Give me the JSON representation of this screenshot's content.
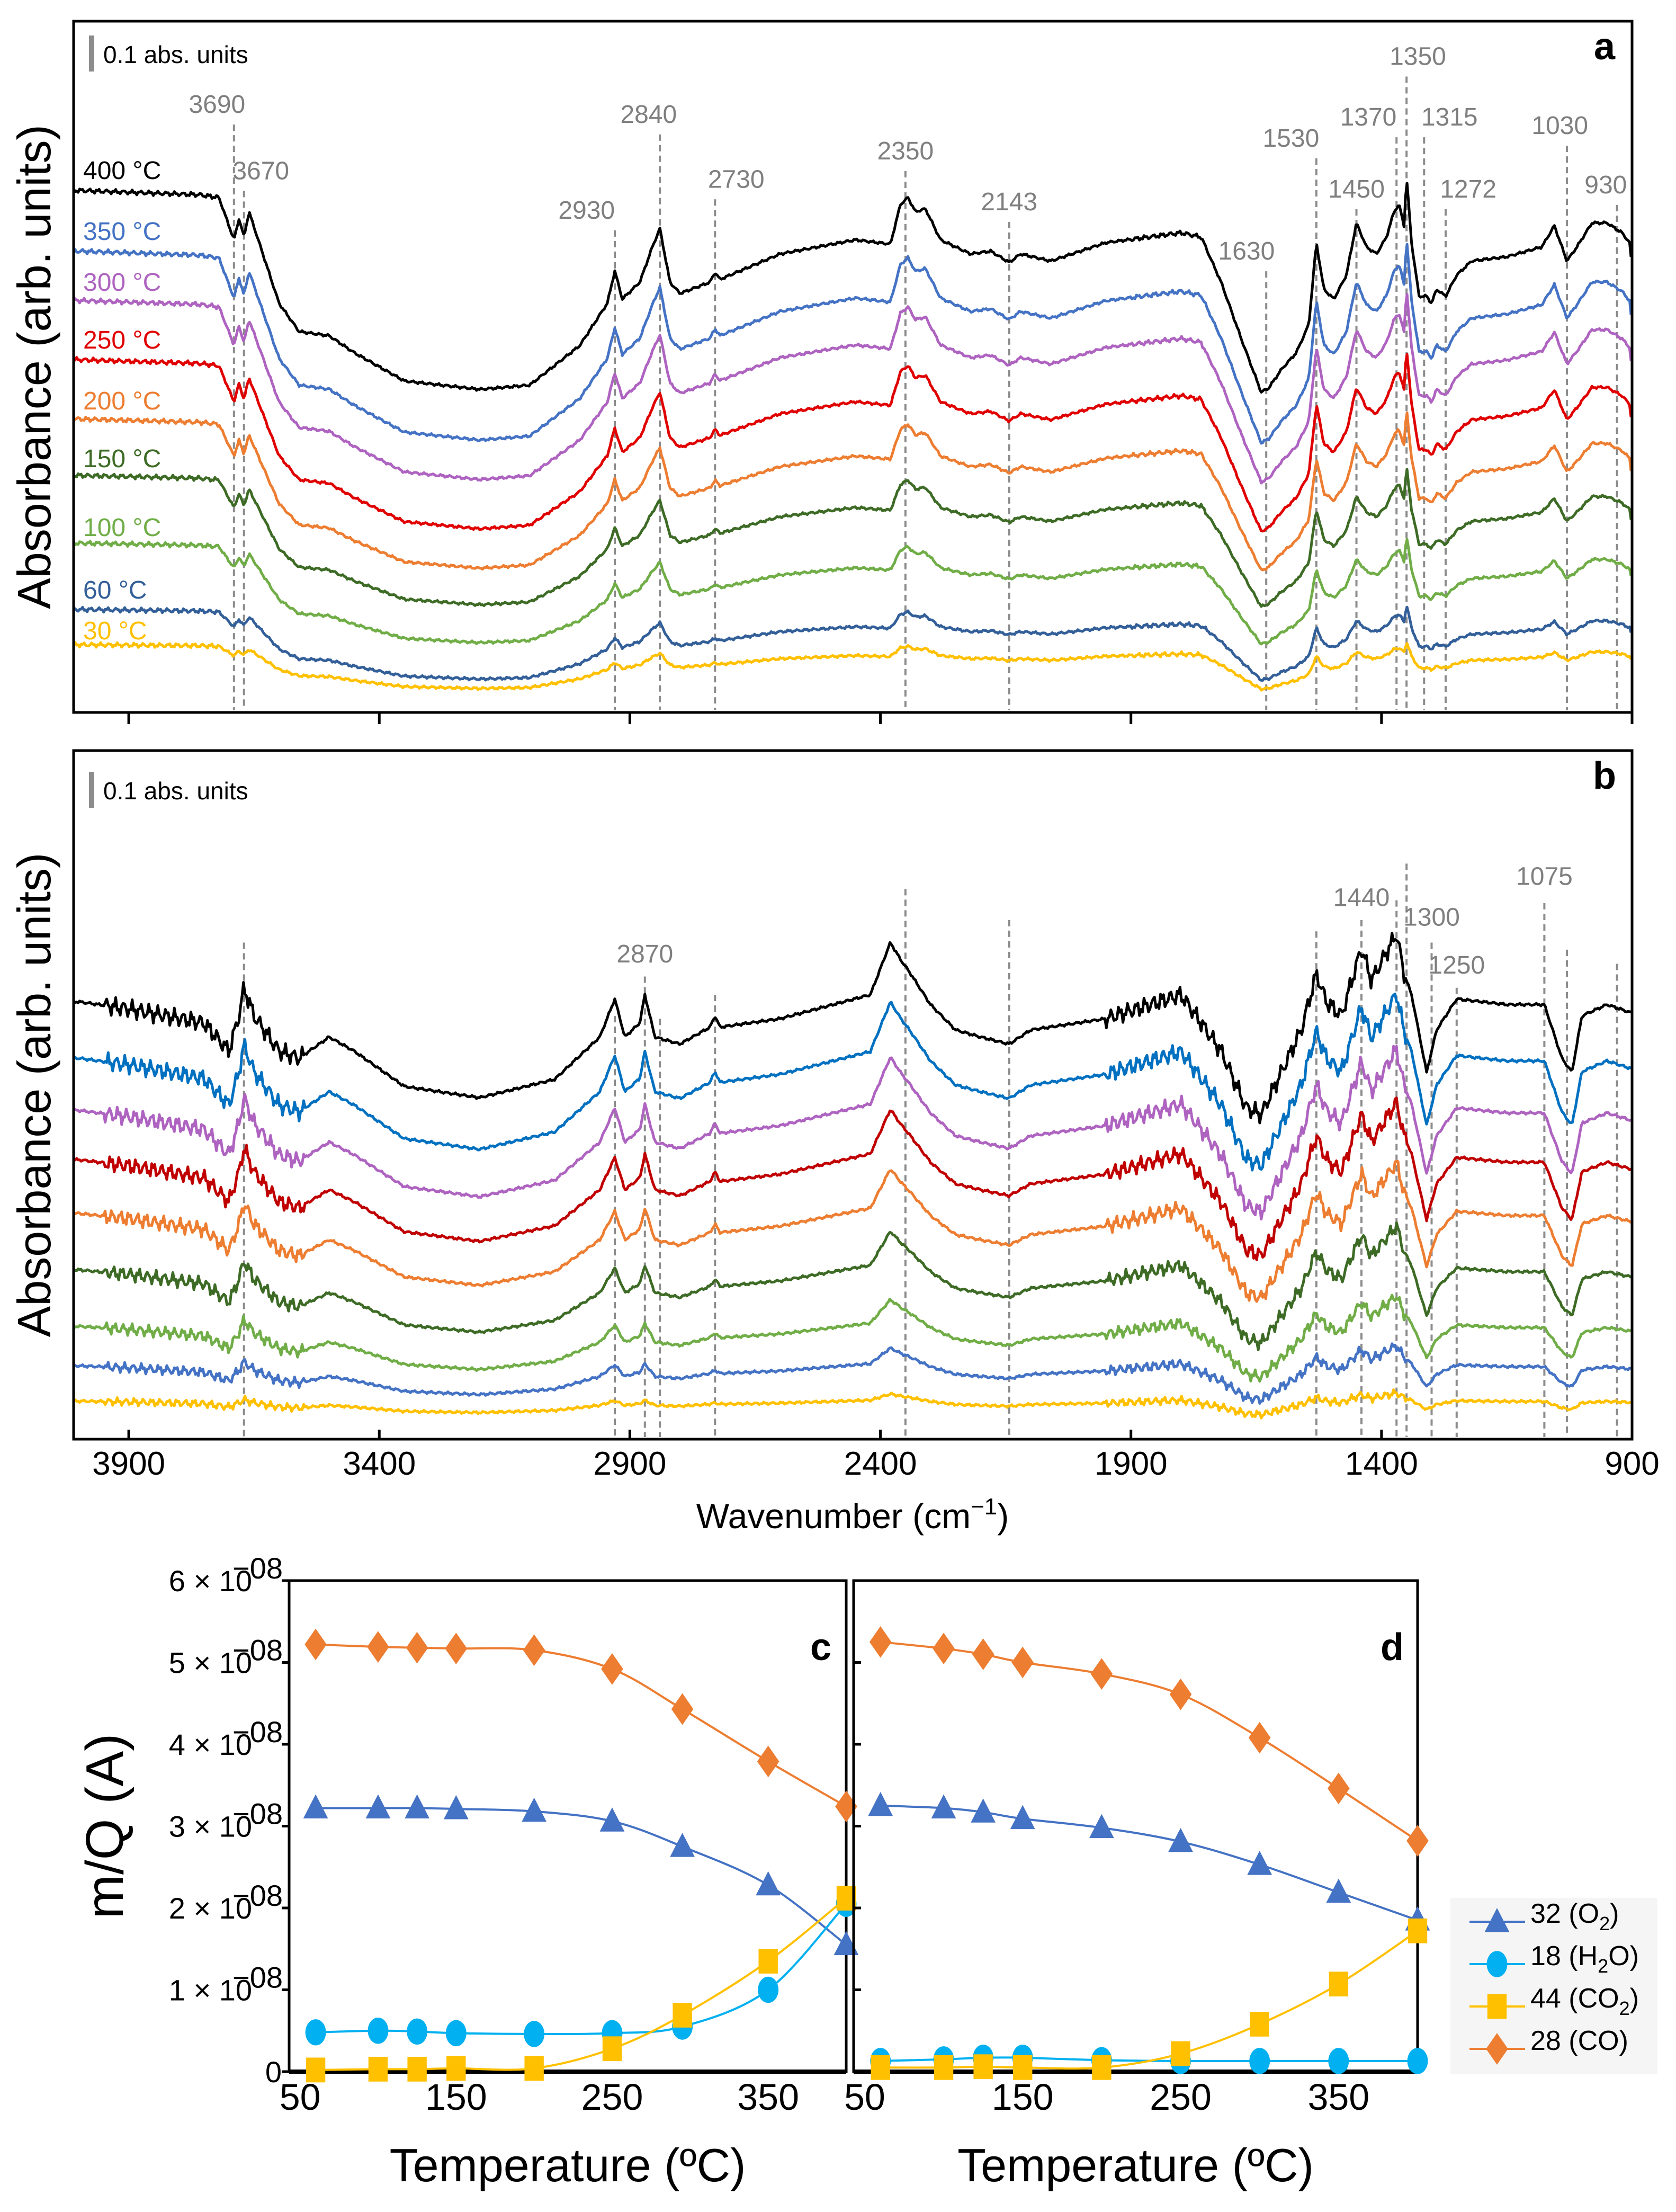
{
  "chart_data": [
    {
      "panel": "a",
      "type": "line",
      "ylabel": "Absorbance (arb. units)",
      "xlim": [
        4010,
        900
      ],
      "ylim": [
        0,
        1.96
      ],
      "xticks": [
        3900,
        3400,
        2900,
        2400,
        1900,
        1400,
        900
      ],
      "scale_bar": "0.1 abs. units",
      "reference_shape": {
        "wavenumber": [
          4000,
          3760,
          3720,
          3700,
          3690,
          3680,
          3670,
          3660,
          3600,
          3560,
          3500,
          3450,
          3350,
          3200,
          3100,
          3000,
          2945,
          2930,
          2915,
          2880,
          2855,
          2840,
          2820,
          2800,
          2740,
          2730,
          2720,
          2600,
          2450,
          2380,
          2360,
          2345,
          2330,
          2310,
          2280,
          2220,
          2180,
          2143,
          2120,
          2060,
          1950,
          1800,
          1760,
          1720,
          1680,
          1640,
          1625,
          1600,
          1570,
          1545,
          1530,
          1515,
          1495,
          1470,
          1450,
          1430,
          1410,
          1390,
          1375,
          1365,
          1355,
          1350,
          1340,
          1325,
          1310,
          1300,
          1290,
          1272,
          1250,
          1220,
          1150,
          1080,
          1055,
          1030,
          1010,
          980,
          950,
          920,
          905,
          900
        ],
        "absorbance": [
          1.48,
          1.468,
          1.46,
          1.38,
          1.34,
          1.4,
          1.348,
          1.42,
          1.16,
          1.08,
          1.068,
          1.02,
          0.94,
          0.916,
          0.928,
          1.04,
          1.16,
          1.252,
          1.172,
          1.22,
          1.32,
          1.372,
          1.22,
          1.188,
          1.22,
          1.248,
          1.228,
          1.3,
          1.34,
          1.328,
          1.44,
          1.46,
          1.42,
          1.428,
          1.34,
          1.3,
          1.308,
          1.276,
          1.3,
          1.28,
          1.332,
          1.36,
          1.348,
          1.22,
          1.06,
          0.908,
          0.92,
          0.972,
          1.02,
          1.1,
          1.332,
          1.2,
          1.172,
          1.24,
          1.388,
          1.32,
          1.3,
          1.348,
          1.42,
          1.44,
          1.38,
          1.52,
          1.332,
          1.18,
          1.18,
          1.16,
          1.2,
          1.18,
          1.24,
          1.28,
          1.292,
          1.32,
          1.38,
          1.28,
          1.32,
          1.388,
          1.388,
          1.36,
          1.332,
          1.26
        ]
      },
      "series": [
        {
          "name": "400 °C",
          "color": "#000000",
          "baseline": 1.48,
          "amplitude": 1.0
        },
        {
          "name": "350 °C",
          "color": "#4472c4",
          "baseline": 1.308,
          "amplitude": 0.95
        },
        {
          "name": "300 °C",
          "color": "#ae63c0",
          "baseline": 1.168,
          "amplitude": 0.9
        },
        {
          "name": "250 °C",
          "color": "#e00000",
          "baseline": 1.0,
          "amplitude": 0.85
        },
        {
          "name": "200 °C",
          "color": "#ed7d31",
          "baseline": 0.832,
          "amplitude": 0.75
        },
        {
          "name": "150 °C",
          "color": "#3d6b25",
          "baseline": 0.672,
          "amplitude": 0.65
        },
        {
          "name": "100 °C",
          "color": "#70ad47",
          "baseline": 0.48,
          "amplitude": 0.5
        },
        {
          "name": "60 °C",
          "color": "#335f99",
          "baseline": 0.292,
          "amplitude": 0.35
        },
        {
          "name": "30 °C",
          "color": "#ffc000",
          "baseline": 0.192,
          "amplitude": 0.22
        }
      ],
      "peaks": [
        {
          "wavenumber": 3690,
          "label": "3690"
        },
        {
          "wavenumber": 3670,
          "label": "3670"
        },
        {
          "wavenumber": 2930,
          "label": "2930"
        },
        {
          "wavenumber": 2840,
          "label": "2840"
        },
        {
          "wavenumber": 2730,
          "label": "2730"
        },
        {
          "wavenumber": 2350,
          "label": "2350"
        },
        {
          "wavenumber": 2143,
          "label": "2143"
        },
        {
          "wavenumber": 1630,
          "label": "1630"
        },
        {
          "wavenumber": 1530,
          "label": "1530"
        },
        {
          "wavenumber": 1450,
          "label": "1450"
        },
        {
          "wavenumber": 1370,
          "label": "1370"
        },
        {
          "wavenumber": 1350,
          "label": "1350"
        },
        {
          "wavenumber": 1315,
          "label": "1315"
        },
        {
          "wavenumber": 1272,
          "label": "1272"
        },
        {
          "wavenumber": 1030,
          "label": "1030"
        },
        {
          "wavenumber": 930,
          "label": "930"
        }
      ]
    },
    {
      "panel": "b",
      "type": "line",
      "ylabel": "Absorbance (arb. units)",
      "xlabel": {
        "text": "Wavenumber (cm",
        "sup": "−1",
        "end": ")"
      },
      "xlim": [
        4010,
        900
      ],
      "ylim": [
        0,
        1.952
      ],
      "xticks": [
        3900,
        3400,
        2900,
        2400,
        1900,
        1400,
        900
      ],
      "xtick_labels": [
        "3900",
        "3400",
        "2900",
        "2400",
        "1900",
        "1400",
        "900"
      ],
      "scale_bar": "0.1 abs. units",
      "reference_shape": {
        "wavenumber": [
          4000,
          3900,
          3750,
          3700,
          3680,
          3670,
          3650,
          3600,
          3560,
          3500,
          3450,
          3350,
          3200,
          3050,
          2960,
          2930,
          2910,
          2880,
          2870,
          2850,
          2800,
          2740,
          2730,
          2720,
          2600,
          2420,
          2380,
          2360,
          2340,
          2300,
          2250,
          2200,
          2143,
          2100,
          1950,
          1800,
          1720,
          1670,
          1640,
          1600,
          1560,
          1530,
          1510,
          1480,
          1440,
          1420,
          1390,
          1370,
          1355,
          1340,
          1310,
          1290,
          1250,
          1150,
          1075,
          1040,
          1020,
          1000,
          950,
          900
        ],
        "absorbance": [
          1.24,
          1.22,
          1.18,
          1.1,
          1.2,
          1.28,
          1.2,
          1.1,
          1.08,
          1.14,
          1.1,
          1.0,
          0.968,
          1.02,
          1.14,
          1.248,
          1.14,
          1.18,
          1.26,
          1.14,
          1.12,
          1.168,
          1.2,
          1.168,
          1.192,
          1.26,
          1.408,
          1.36,
          1.32,
          1.232,
          1.16,
          1.14,
          1.12,
          1.16,
          1.192,
          1.26,
          1.1,
          0.94,
          0.92,
          1.04,
          1.16,
          1.32,
          1.24,
          1.2,
          1.392,
          1.3,
          1.38,
          1.432,
          1.32,
          1.26,
          1.04,
          1.16,
          1.248,
          1.232,
          1.232,
          1.08,
          1.04,
          1.2,
          1.232,
          1.208
        ]
      },
      "series": [
        {
          "name": "400 °C",
          "color": "#000000",
          "baseline": 1.24,
          "amplitude": 1.0
        },
        {
          "name": "350 °C",
          "color": "#0070c0",
          "baseline": 1.08,
          "amplitude": 0.95
        },
        {
          "name": "300 °C",
          "color": "#ae63c0",
          "baseline": 0.932,
          "amplitude": 0.9
        },
        {
          "name": "250 °C",
          "color": "#c00000",
          "baseline": 0.792,
          "amplitude": 0.85
        },
        {
          "name": "200 °C",
          "color": "#ed7d31",
          "baseline": 0.64,
          "amplitude": 0.75
        },
        {
          "name": "150 °C",
          "color": "#3d6b25",
          "baseline": 0.48,
          "amplitude": 0.65
        },
        {
          "name": "100 °C",
          "color": "#70ad47",
          "baseline": 0.32,
          "amplitude": 0.45
        },
        {
          "name": "60 °C",
          "color": "#4472c4",
          "baseline": 0.208,
          "amplitude": 0.3
        },
        {
          "name": "30 °C",
          "color": "#ffc000",
          "baseline": 0.108,
          "amplitude": 0.12
        }
      ],
      "peaks": [
        {
          "wavenumber": 3670,
          "label": ""
        },
        {
          "wavenumber": 2930,
          "label": ""
        },
        {
          "wavenumber": 2870,
          "label": "2870"
        },
        {
          "wavenumber": 2840,
          "label": ""
        },
        {
          "wavenumber": 2730,
          "label": ""
        },
        {
          "wavenumber": 2350,
          "label": ""
        },
        {
          "wavenumber": 2143,
          "label": ""
        },
        {
          "wavenumber": 1530,
          "label": ""
        },
        {
          "wavenumber": 1440,
          "label": "1440"
        },
        {
          "wavenumber": 1370,
          "label": ""
        },
        {
          "wavenumber": 1350,
          "label": ""
        },
        {
          "wavenumber": 1300,
          "label": "1300"
        },
        {
          "wavenumber": 1250,
          "label": "1250"
        },
        {
          "wavenumber": 1075,
          "label": "1075"
        },
        {
          "wavenumber": 1030,
          "label": ""
        },
        {
          "wavenumber": 930,
          "label": ""
        }
      ]
    },
    {
      "panel": "c",
      "type": "line",
      "ylabel": "m/Q (A)",
      "xlabel": "Temperature (ºC)",
      "xlim": [
        43,
        400
      ],
      "ylim": [
        0,
        6
      ],
      "y_unit": "1e-08 A",
      "xticks": [
        50,
        150,
        250,
        350
      ],
      "xtick_labels": [
        "50",
        "150",
        "250",
        "350"
      ],
      "yticks": [
        0,
        1,
        2,
        3,
        4,
        5,
        6
      ],
      "ytick_labels": [
        {
          "base": "0",
          "exp": ""
        },
        {
          "base": "1 × 10",
          "exp": "−08"
        },
        {
          "base": "2 × 10",
          "exp": "−08"
        },
        {
          "base": "3 × 10",
          "exp": "−08"
        },
        {
          "base": "4 × 10",
          "exp": "−08"
        },
        {
          "base": "5 × 10",
          "exp": "−08"
        },
        {
          "base": "6 × 10",
          "exp": "−08"
        }
      ],
      "x": [
        60,
        100,
        125,
        150,
        200,
        250,
        295,
        350,
        400
      ],
      "series": [
        {
          "name": "32 (O2)",
          "color": "#4472c4",
          "marker": "triangle",
          "values": [
            3.22,
            3.22,
            3.22,
            3.21,
            3.18,
            3.06,
            2.75,
            2.28,
            1.55
          ]
        },
        {
          "name": "18 (H2O)",
          "color": "#00b0f0",
          "marker": "circle",
          "values": [
            0.48,
            0.5,
            0.49,
            0.47,
            0.46,
            0.47,
            0.55,
            1.0,
            2.05
          ]
        },
        {
          "name": "44 (CO2)",
          "color": "#ffc000",
          "marker": "square",
          "values": [
            0.02,
            0.03,
            0.03,
            0.04,
            0.04,
            0.28,
            0.69,
            1.35,
            2.12
          ]
        },
        {
          "name": "28 (CO)",
          "color": "#ed7d31",
          "marker": "diamond",
          "values": [
            5.22,
            5.19,
            5.18,
            5.17,
            5.15,
            4.92,
            4.43,
            3.79,
            3.24
          ]
        }
      ]
    },
    {
      "panel": "d",
      "type": "line",
      "xlabel": "Temperature (ºC)",
      "xlim": [
        43,
        400
      ],
      "ylim": [
        0,
        6
      ],
      "y_unit": "1e-08 A",
      "xticks": [
        50,
        150,
        250,
        350
      ],
      "xtick_labels": [
        "50",
        "150",
        "250",
        "350"
      ],
      "x": [
        60,
        100,
        125,
        150,
        200,
        250,
        300,
        350,
        400
      ],
      "series": [
        {
          "name": "32 (O2)",
          "color": "#4472c4",
          "marker": "triangle",
          "values": [
            3.25,
            3.22,
            3.17,
            3.09,
            2.98,
            2.81,
            2.53,
            2.19,
            1.85
          ]
        },
        {
          "name": "18 (H2O)",
          "color": "#00b0f0",
          "marker": "circle",
          "values": [
            0.13,
            0.15,
            0.17,
            0.17,
            0.14,
            0.13,
            0.13,
            0.13,
            0.13
          ]
        },
        {
          "name": "44 (CO2)",
          "color": "#ffc000",
          "marker": "square",
          "values": [
            0.05,
            0.05,
            0.06,
            0.05,
            0.05,
            0.22,
            0.58,
            1.07,
            1.72
          ]
        },
        {
          "name": "28 (CO)",
          "color": "#ed7d31",
          "marker": "diamond",
          "values": [
            5.25,
            5.17,
            5.1,
            5.0,
            4.86,
            4.61,
            4.08,
            3.46,
            2.82
          ]
        }
      ],
      "legend": {
        "placement": "right-bottom",
        "entries": [
          {
            "pre": "32 (O",
            "sub": "2",
            "post": ")"
          },
          {
            "pre": "18 (H",
            "sub": "2",
            "post": "O)"
          },
          {
            "pre": "44 (CO",
            "sub": "2",
            "post": ")"
          },
          {
            "pre": "28 (CO)",
            "sub": "",
            "post": ""
          }
        ]
      }
    }
  ]
}
